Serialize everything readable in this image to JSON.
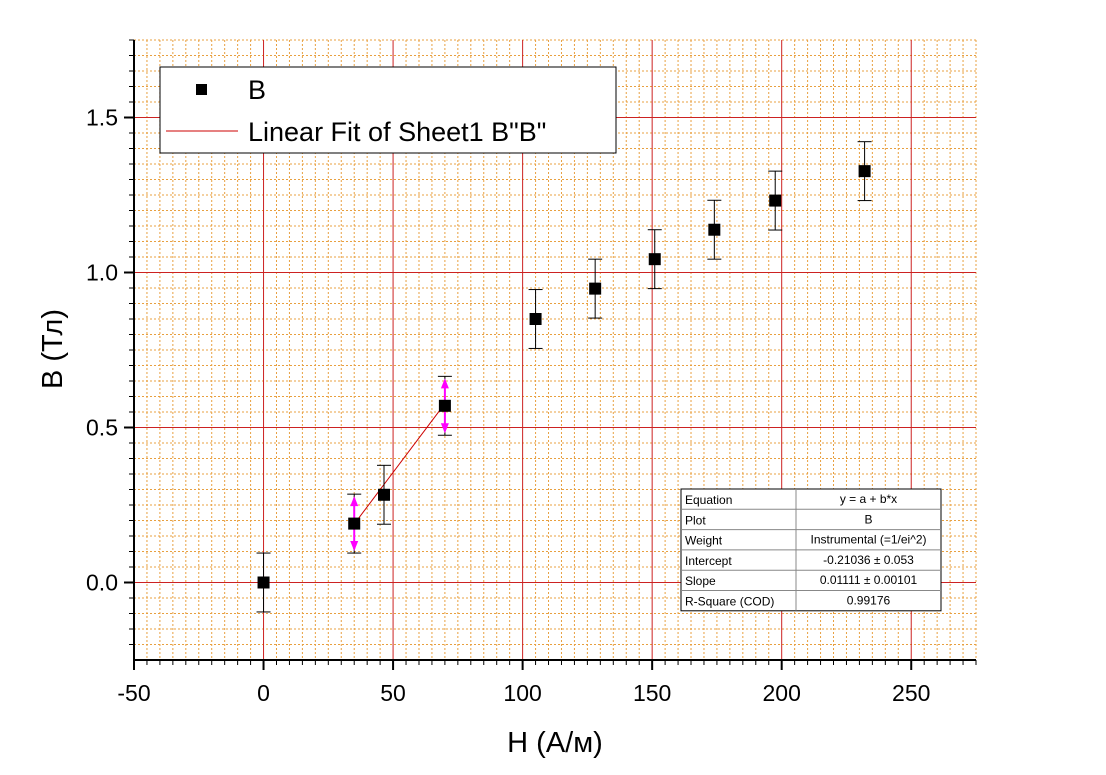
{
  "chart_data": {
    "type": "scatter",
    "xlabel": "H (А/м)",
    "ylabel": "B (Тл)",
    "xlim": [
      -50,
      275
    ],
    "ylim": [
      -0.25,
      1.75
    ],
    "x_ticks": [
      -50,
      0,
      50,
      100,
      150,
      200,
      250
    ],
    "x_tick_labels": [
      "-50",
      "0",
      "50",
      "100",
      "150",
      "200",
      "250"
    ],
    "y_ticks": [
      0.0,
      0.5,
      1.0,
      1.5
    ],
    "y_tick_labels": [
      "0.0",
      "0.5",
      "1.0",
      "1.5"
    ],
    "grid": true,
    "legend_position": "top-left",
    "series": [
      {
        "name": "B",
        "type": "scatter",
        "color": "#000000",
        "x": [
          0,
          35,
          46.5,
          70,
          105,
          128,
          151,
          174,
          197.5,
          232
        ],
        "y": [
          0.0,
          0.19,
          0.283,
          0.57,
          0.85,
          0.948,
          1.043,
          1.138,
          1.232,
          1.327
        ],
        "yerr": [
          0.095,
          0.095,
          0.095,
          0.095,
          0.095,
          0.095,
          0.095,
          0.095,
          0.095,
          0.095
        ]
      },
      {
        "name": "Linear Fit of Sheet1 B\"B\"",
        "type": "line",
        "color": "#cc0000",
        "x": [
          35,
          70
        ],
        "y": [
          0.18849,
          0.57734
        ]
      }
    ],
    "highlight_x": [
      35,
      70
    ],
    "highlight_color": "#ff00ff",
    "stats_table": {
      "rows": [
        {
          "key": "Equation",
          "value": "y = a + b*x"
        },
        {
          "key": "Plot",
          "value": "B"
        },
        {
          "key": "Weight",
          "value": "Instrumental (=1/ei^2)"
        },
        {
          "key": "Intercept",
          "value": "-0.21036 ± 0.053"
        },
        {
          "key": "Slope",
          "value": "0.01111 ± 0.00101"
        },
        {
          "key": "R-Square (COD)",
          "value": "0.99176"
        }
      ]
    }
  }
}
